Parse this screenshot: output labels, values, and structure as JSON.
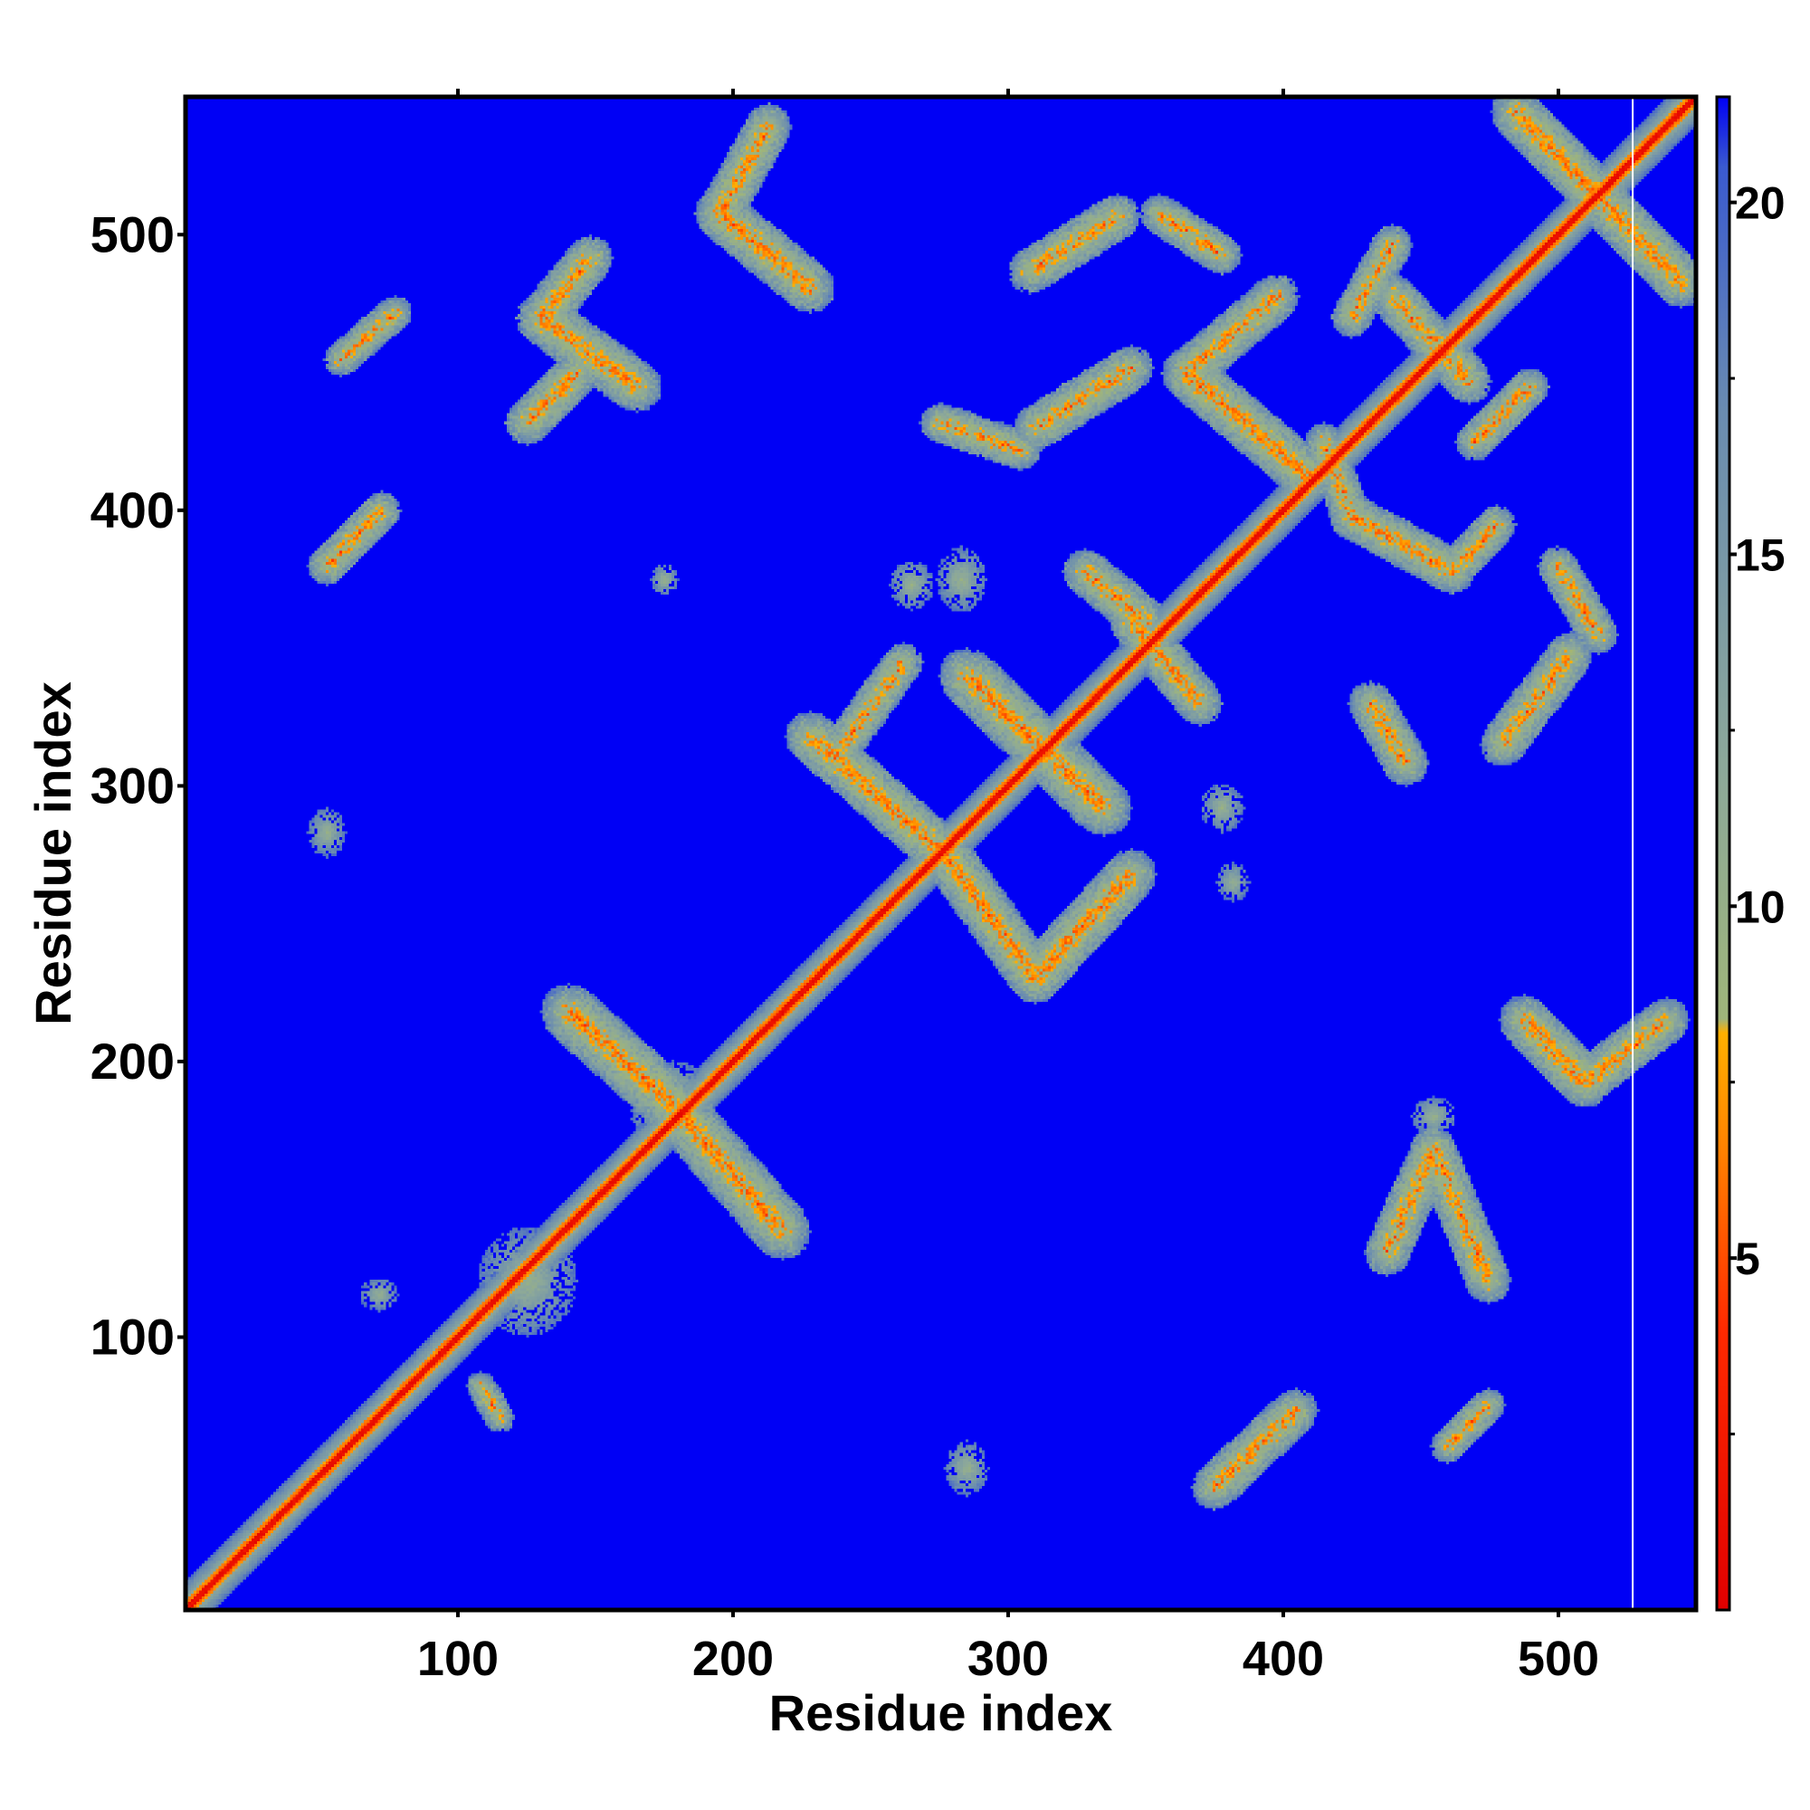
{
  "chart_data": {
    "type": "heatmap",
    "title": "",
    "xlabel": "Residue index",
    "ylabel": "Residue index",
    "xlim": [
      1,
      550
    ],
    "ylim": [
      1,
      550
    ],
    "x_ticks": [
      100,
      200,
      300,
      400,
      500
    ],
    "y_ticks": [
      100,
      200,
      300,
      400,
      500
    ],
    "colorbar": {
      "range": [
        0,
        21.5
      ],
      "ticks": [
        5,
        10,
        15,
        20
      ],
      "stops": [
        {
          "value": 0,
          "color": "#e00000"
        },
        {
          "value": 4,
          "color": "#ff2a00"
        },
        {
          "value": 6.5,
          "color": "#ff8000"
        },
        {
          "value": 8.2,
          "color": "#ffb000"
        },
        {
          "value": 8.4,
          "color": "#9fb57a"
        },
        {
          "value": 12,
          "color": "#8ca89a"
        },
        {
          "value": 17,
          "color": "#6a8cb0"
        },
        {
          "value": 20.5,
          "color": "#3a5ad0"
        },
        {
          "value": 21.5,
          "color": "#0000f5"
        }
      ]
    },
    "background_value": 21,
    "background_color": "#0000f5",
    "diagonal": {
      "from": 1,
      "to": 550
    },
    "white_line_x": 527,
    "contact_features": [
      {
        "kind": "band",
        "start": [
          130,
          470
        ],
        "end": [
          165,
          445
        ],
        "width": 9
      },
      {
        "kind": "band",
        "start": [
          130,
          470
        ],
        "end": [
          148,
          492
        ],
        "width": 8
      },
      {
        "kind": "band",
        "start": [
          125,
          432
        ],
        "end": [
          143,
          450
        ],
        "width": 8
      },
      {
        "kind": "band",
        "start": [
          195,
          508
        ],
        "end": [
          228,
          481
        ],
        "width": 9
      },
      {
        "kind": "band",
        "start": [
          195,
          508
        ],
        "end": [
          213,
          540
        ],
        "width": 8
      },
      {
        "kind": "band",
        "start": [
          52,
          380
        ],
        "end": [
          72,
          400
        ],
        "width": 7
      },
      {
        "kind": "band",
        "start": [
          57,
          455
        ],
        "end": [
          77,
          472
        ],
        "width": 6
      },
      {
        "kind": "blob",
        "center": [
          52,
          283
        ],
        "rx": 7,
        "ry": 9
      },
      {
        "kind": "blob",
        "center": [
          71,
          115
        ],
        "rx": 7,
        "ry": 6
      },
      {
        "kind": "band",
        "start": [
          108,
          82
        ],
        "end": [
          115,
          70
        ],
        "width": 5
      },
      {
        "kind": "blob",
        "center": [
          125,
          120
        ],
        "rx": 18,
        "ry": 20
      },
      {
        "kind": "blob",
        "center": [
          175,
          375
        ],
        "rx": 5,
        "ry": 6
      },
      {
        "kind": "band",
        "start": [
          140,
          218
        ],
        "end": [
          178,
          184
        ],
        "width": 10
      },
      {
        "kind": "band",
        "start": [
          178,
          184
        ],
        "end": [
          218,
          138
        ],
        "width": 10
      },
      {
        "kind": "blob",
        "center": [
          178,
          184
        ],
        "rx": 16,
        "ry": 16
      },
      {
        "kind": "band",
        "start": [
          228,
          318
        ],
        "end": [
          278,
          274
        ],
        "width": 9
      },
      {
        "kind": "band",
        "start": [
          238,
          312
        ],
        "end": [
          262,
          345
        ],
        "width": 7
      },
      {
        "kind": "band",
        "start": [
          278,
          274
        ],
        "end": [
          310,
          230
        ],
        "width": 9
      },
      {
        "kind": "band",
        "start": [
          310,
          230
        ],
        "end": [
          345,
          268
        ],
        "width": 9
      },
      {
        "kind": "band",
        "start": [
          285,
          340
        ],
        "end": [
          335,
          292
        ],
        "width": 10
      },
      {
        "kind": "band",
        "start": [
          345,
          360
        ],
        "end": [
          370,
          330
        ],
        "width": 8
      },
      {
        "kind": "band",
        "start": [
          328,
          378
        ],
        "end": [
          350,
          360
        ],
        "width": 8
      },
      {
        "kind": "band",
        "start": [
          275,
          432
        ],
        "end": [
          305,
          422
        ],
        "width": 7
      },
      {
        "kind": "band",
        "start": [
          310,
          430
        ],
        "end": [
          345,
          452
        ],
        "width": 8
      },
      {
        "kind": "band",
        "start": [
          308,
          487
        ],
        "end": [
          340,
          507
        ],
        "width": 8
      },
      {
        "kind": "band",
        "start": [
          355,
          508
        ],
        "end": [
          378,
          493
        ],
        "width": 7
      },
      {
        "kind": "band",
        "start": [
          365,
          450
        ],
        "end": [
          398,
          478
        ],
        "width": 8
      },
      {
        "kind": "band",
        "start": [
          365,
          450
        ],
        "end": [
          410,
          412
        ],
        "width": 9
      },
      {
        "kind": "band",
        "start": [
          425,
          398
        ],
        "end": [
          462,
          378
        ],
        "width": 8
      },
      {
        "kind": "band",
        "start": [
          462,
          378
        ],
        "end": [
          478,
          395
        ],
        "width": 7
      },
      {
        "kind": "band",
        "start": [
          425,
          398
        ],
        "end": [
          415,
          425
        ],
        "width": 7
      },
      {
        "kind": "band",
        "start": [
          440,
          478
        ],
        "end": [
          468,
          447
        ],
        "width": 8
      },
      {
        "kind": "band",
        "start": [
          425,
          470
        ],
        "end": [
          440,
          497
        ],
        "width": 7
      },
      {
        "kind": "band",
        "start": [
          490,
          445
        ],
        "end": [
          470,
          425
        ],
        "width": 7
      },
      {
        "kind": "band",
        "start": [
          485,
          545
        ],
        "end": [
          545,
          483
        ],
        "width": 9
      },
      {
        "kind": "band",
        "start": [
          500,
          380
        ],
        "end": [
          515,
          355
        ],
        "width": 7
      },
      {
        "kind": "band",
        "start": [
          432,
          330
        ],
        "end": [
          445,
          308
        ],
        "width": 8
      },
      {
        "kind": "band",
        "start": [
          480,
          315
        ],
        "end": [
          505,
          348
        ],
        "width": 8
      },
      {
        "kind": "blob",
        "center": [
          378,
          292
        ],
        "rx": 8,
        "ry": 9
      },
      {
        "kind": "blob",
        "center": [
          382,
          265
        ],
        "rx": 6,
        "ry": 7
      },
      {
        "kind": "blob",
        "center": [
          283,
          375
        ],
        "rx": 9,
        "ry": 12
      },
      {
        "kind": "blob",
        "center": [
          265,
          373
        ],
        "rx": 8,
        "ry": 9
      },
      {
        "kind": "blob",
        "center": [
          285,
          52
        ],
        "rx": 8,
        "ry": 10
      },
      {
        "kind": "band",
        "start": [
          375,
          45
        ],
        "end": [
          405,
          73
        ],
        "width": 8
      },
      {
        "kind": "band",
        "start": [
          460,
          60
        ],
        "end": [
          475,
          75
        ],
        "width": 6
      },
      {
        "kind": "band",
        "start": [
          438,
          130
        ],
        "end": [
          455,
          168
        ],
        "width": 8
      },
      {
        "kind": "band",
        "start": [
          455,
          168
        ],
        "end": [
          475,
          120
        ],
        "width": 8
      },
      {
        "kind": "band",
        "start": [
          488,
          215
        ],
        "end": [
          510,
          192
        ],
        "width": 9
      },
      {
        "kind": "band",
        "start": [
          510,
          192
        ],
        "end": [
          540,
          215
        ],
        "width": 8
      },
      {
        "kind": "blob",
        "center": [
          455,
          180
        ],
        "rx": 8,
        "ry": 7
      }
    ]
  }
}
